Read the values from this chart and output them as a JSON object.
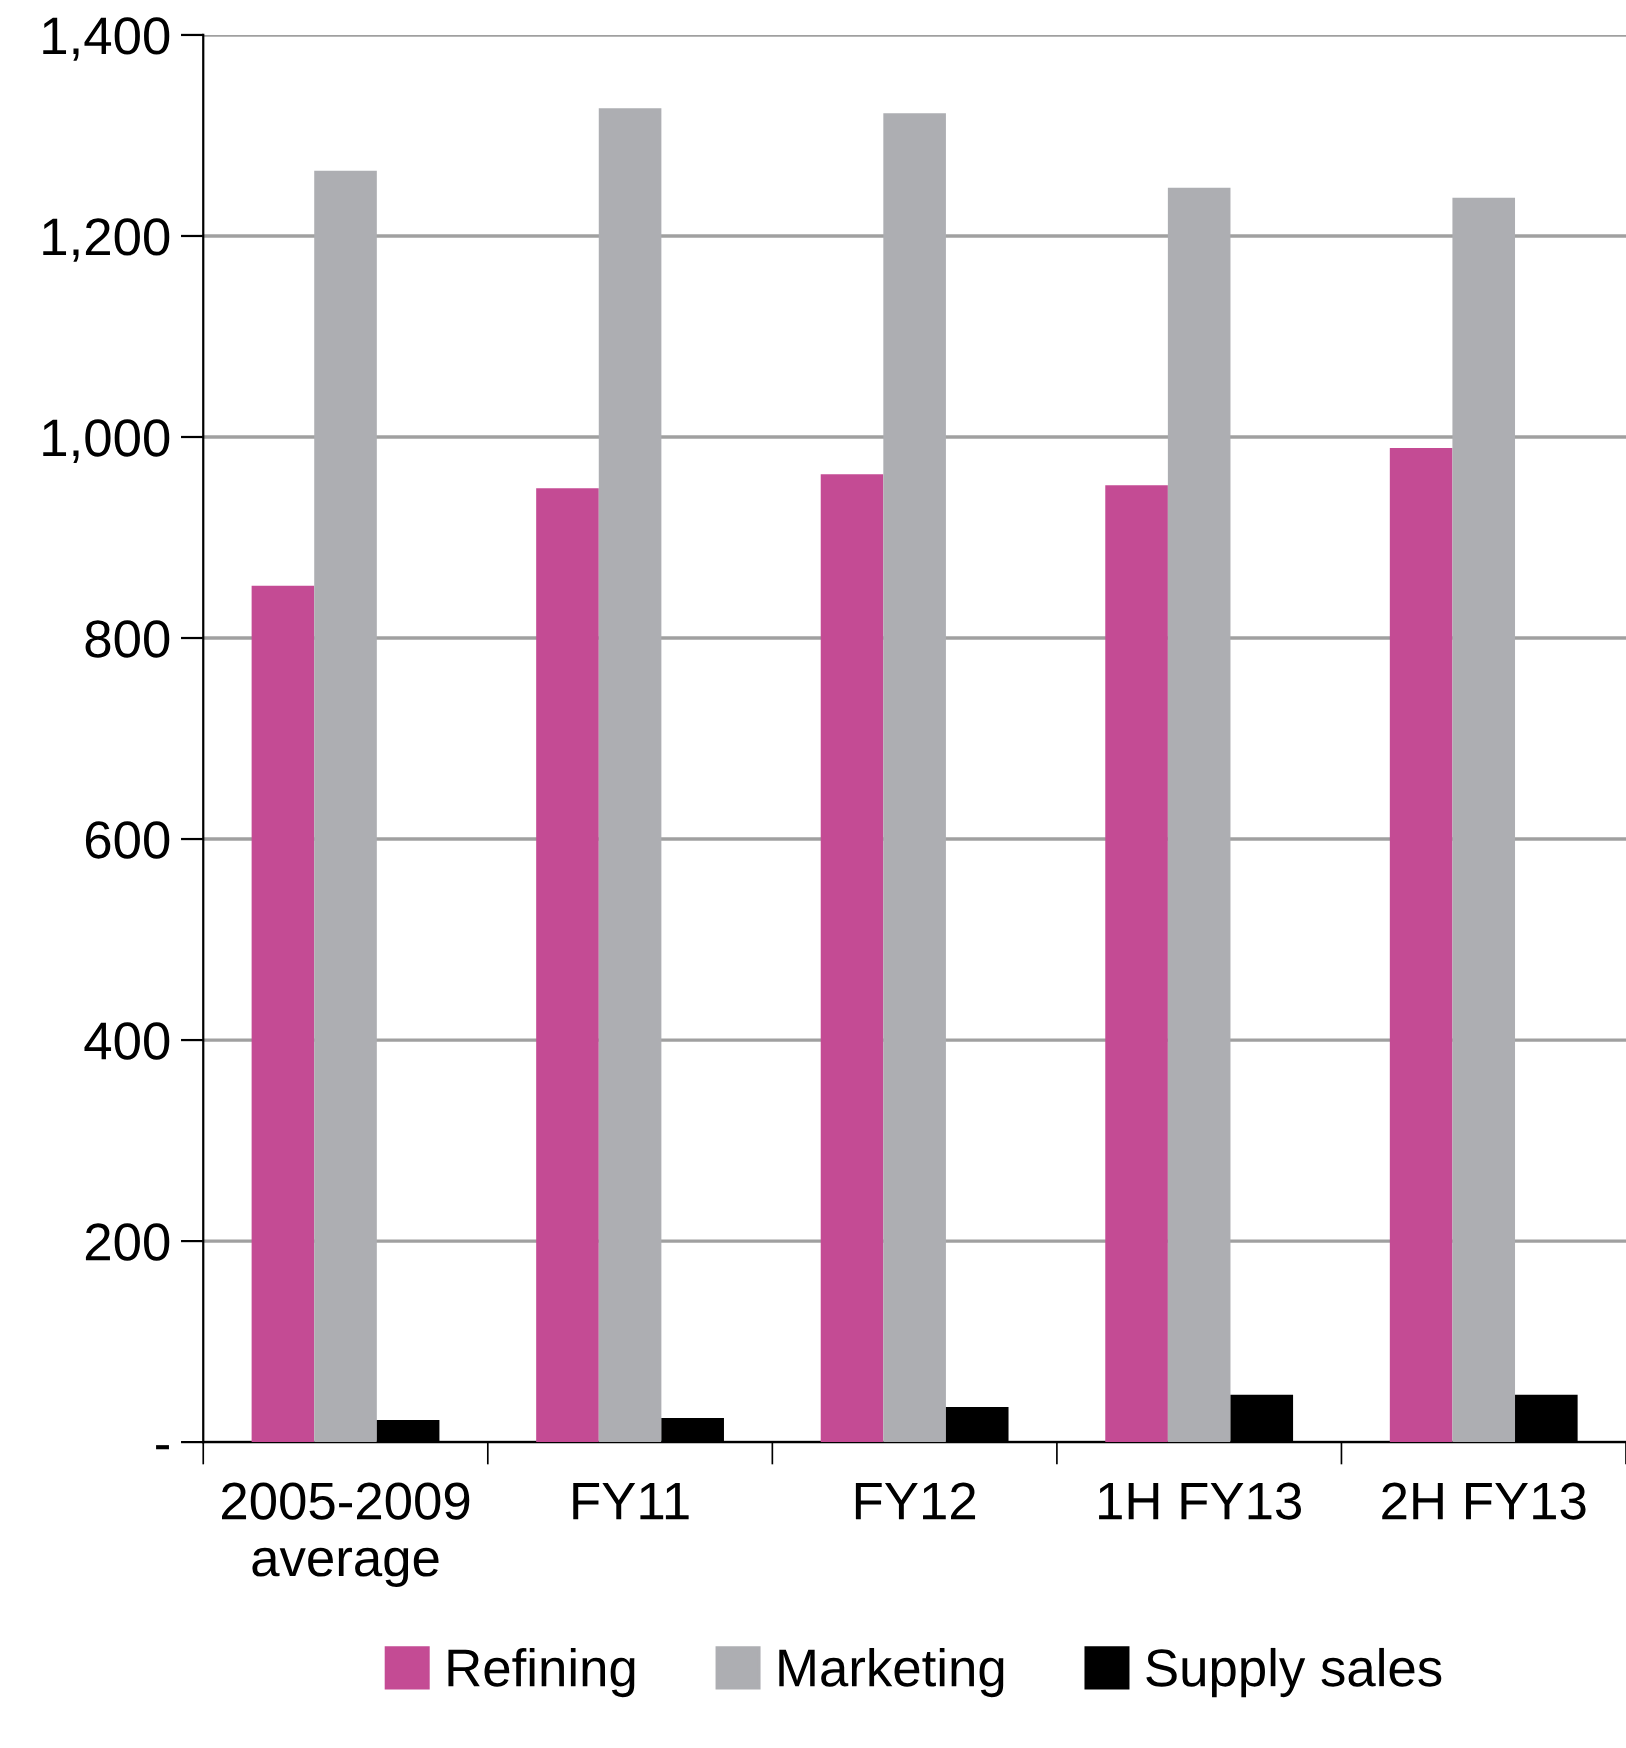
{
  "chart_data": {
    "type": "bar",
    "categories": [
      "2005-2009\naverage",
      "FY11",
      "FY12",
      "1H FY13",
      "2H FY13"
    ],
    "series": [
      {
        "name": "Refining",
        "color": "#c44b94",
        "values": [
          852,
          949,
          963,
          952,
          989
        ]
      },
      {
        "name": "Marketing",
        "color": "#adaeb2",
        "values": [
          1265,
          1327,
          1322,
          1248,
          1238
        ]
      },
      {
        "name": "Supply sales",
        "color": "#000000",
        "values": [
          22,
          24,
          35,
          47,
          47
        ]
      }
    ],
    "ylim": [
      0,
      1400
    ],
    "yticks": [
      {
        "value": 0,
        "label": "-"
      },
      {
        "value": 200,
        "label": "200"
      },
      {
        "value": 400,
        "label": "400"
      },
      {
        "value": 600,
        "label": "600"
      },
      {
        "value": 800,
        "label": "800"
      },
      {
        "value": 1000,
        "label": "1,000"
      },
      {
        "value": 1200,
        "label": "1,200"
      },
      {
        "value": 1400,
        "label": "1,400"
      }
    ],
    "grid": "y",
    "legend": "bottom"
  }
}
